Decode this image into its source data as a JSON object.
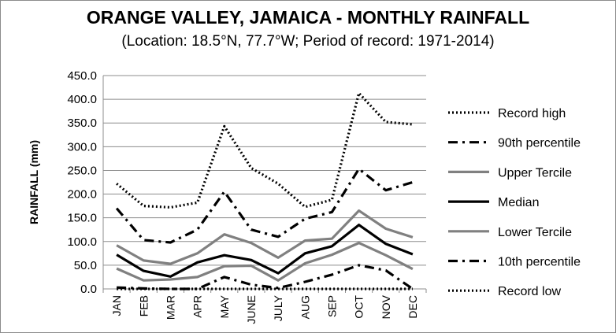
{
  "chart_data": {
    "type": "line",
    "title": "ORANGE VALLEY, JAMAICA - MONTHLY RAINFALL",
    "subtitle": "(Location: 18.5°N, 77.7°W; Period of record: 1971-2014)",
    "xlabel": "",
    "ylabel": "RAINFALL (mm)",
    "ylim": [
      0,
      450
    ],
    "y_ticks": [
      "0.0",
      "50.0",
      "100.0",
      "150.0",
      "200.0",
      "250.0",
      "300.0",
      "350.0",
      "400.0",
      "450.0"
    ],
    "categories": [
      "JAN",
      "FEB",
      "MAR",
      "APR",
      "MAY",
      "JUNE",
      "JULY",
      "AUG",
      "SEP",
      "OCT",
      "NOV",
      "DEC"
    ],
    "grid": true,
    "legend_position": "right",
    "series": [
      {
        "name": "Record high",
        "style": "dotted",
        "color": "#000000",
        "values": [
          222,
          175,
          172,
          182,
          343,
          255,
          222,
          173,
          188,
          413,
          352,
          347
        ]
      },
      {
        "name": "90th percentile",
        "style": "dashdot",
        "color": "#000000",
        "values": [
          170,
          103,
          98,
          125,
          205,
          125,
          110,
          148,
          162,
          253,
          208,
          225
        ]
      },
      {
        "name": "Upper Tercile",
        "style": "solid",
        "color": "#808080",
        "values": [
          92,
          60,
          53,
          75,
          115,
          97,
          66,
          102,
          106,
          165,
          127,
          109
        ]
      },
      {
        "name": "Median",
        "style": "solid",
        "color": "#000000",
        "values": [
          72,
          38,
          26,
          56,
          71,
          61,
          33,
          75,
          90,
          135,
          95,
          73
        ]
      },
      {
        "name": "Lower Tercile",
        "style": "solid",
        "color": "#808080",
        "values": [
          43,
          18,
          20,
          25,
          48,
          49,
          18,
          54,
          72,
          97,
          71,
          42
        ]
      },
      {
        "name": "10th percentile",
        "style": "dashdot",
        "color": "#000000",
        "values": [
          3,
          1,
          0,
          0,
          25,
          9,
          2,
          15,
          30,
          50,
          39,
          0
        ]
      },
      {
        "name": "Record low",
        "style": "dotted",
        "color": "#000000",
        "values": [
          0,
          0,
          0,
          0,
          0,
          0,
          0,
          0,
          0,
          0,
          0,
          0
        ]
      }
    ]
  }
}
